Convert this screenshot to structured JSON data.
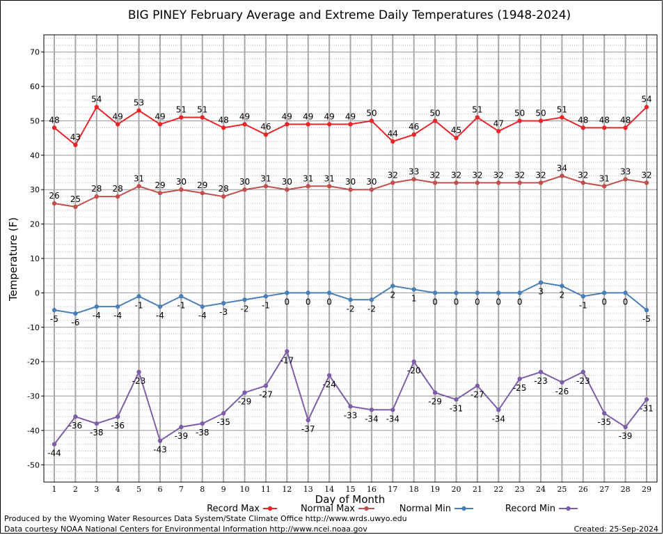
{
  "footer": {
    "produced": "Produced by the Wyoming Water Resources Data System/State Climate Office http://www.wrds.uwyo.edu",
    "courtesy": "Data courtesy NOAA National Centers for Environmental Information http://www.ncei.noaa.gov",
    "created": "Created: 25-Sep-2024"
  },
  "chart_data": {
    "type": "line",
    "title": "BIG PINEY February Average and Extreme Daily Temperatures (1948-2024)",
    "xlabel": "Day of Month",
    "ylabel": "Temperature (F)",
    "ylim": [
      -55,
      75
    ],
    "yticks": [
      -50,
      -40,
      -30,
      -20,
      -10,
      0,
      10,
      20,
      30,
      40,
      50,
      60,
      70
    ],
    "x": [
      1,
      2,
      3,
      4,
      5,
      6,
      7,
      8,
      9,
      10,
      11,
      12,
      13,
      14,
      15,
      16,
      17,
      18,
      19,
      20,
      21,
      22,
      23,
      24,
      25,
      26,
      27,
      28,
      29
    ],
    "grid": true,
    "legend_position": "bottom",
    "series": [
      {
        "name": "Record Max",
        "color": "#e8262a",
        "values": [
          48,
          43,
          54,
          49,
          53,
          49,
          51,
          51,
          48,
          49,
          46,
          49,
          49,
          49,
          49,
          50,
          44,
          46,
          50,
          45,
          51,
          47,
          50,
          50,
          51,
          48,
          48,
          48,
          54
        ]
      },
      {
        "name": "Normal Max",
        "color": "#c0504d",
        "values": [
          26,
          25,
          28,
          28,
          31,
          29,
          30,
          29,
          28,
          30,
          31,
          30,
          31,
          31,
          30,
          30,
          32,
          33,
          32,
          32,
          32,
          32,
          32,
          32,
          34,
          32,
          31,
          33,
          32
        ]
      },
      {
        "name": "Normal Min",
        "color": "#4a7fb5",
        "values": [
          -5,
          -6,
          -4,
          -4,
          -1,
          -4,
          -1,
          -4,
          -3,
          -2,
          -1,
          0,
          0,
          0,
          -2,
          -2,
          2,
          1,
          0,
          0,
          0,
          0,
          0,
          3,
          2,
          -1,
          0,
          0,
          -5
        ]
      },
      {
        "name": "Record Min",
        "color": "#7b5ea7",
        "values": [
          -44,
          -36,
          -38,
          -36,
          -23,
          -43,
          -39,
          -38,
          -35,
          -29,
          -27,
          -17,
          -37,
          -24,
          -33,
          -34,
          -34,
          -20,
          -29,
          -31,
          -27,
          -34,
          -25,
          -23,
          -26,
          -23,
          -35,
          -39,
          -31
        ]
      }
    ]
  }
}
